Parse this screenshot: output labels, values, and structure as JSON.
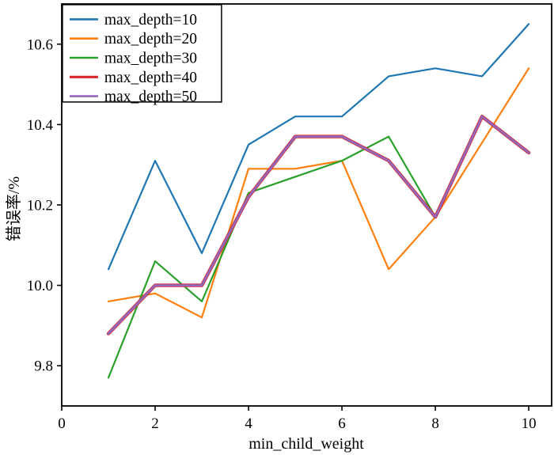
{
  "figure": {
    "background": "#ffffff",
    "frame_color": "#000000",
    "text_color": "#000000"
  },
  "chart_data": {
    "type": "line",
    "title": "",
    "xlabel": "min_child_weight",
    "ylabel": "错误率/%",
    "x": [
      1,
      2,
      3,
      4,
      5,
      6,
      7,
      8,
      9,
      10
    ],
    "series": [
      {
        "name": "max_depth=10",
        "color": "#1f77b4",
        "values": [
          10.04,
          10.31,
          10.08,
          10.35,
          10.42,
          10.42,
          10.52,
          10.54,
          10.52,
          10.65
        ]
      },
      {
        "name": "max_depth=20",
        "color": "#ff7f0e",
        "values": [
          9.96,
          9.98,
          9.92,
          10.29,
          10.29,
          10.31,
          10.04,
          10.17,
          10.355,
          10.54
        ]
      },
      {
        "name": "max_depth=30",
        "color": "#2ca02c",
        "values": [
          9.77,
          10.06,
          9.96,
          10.23,
          10.27,
          10.31,
          10.37,
          10.17,
          10.42,
          10.33
        ]
      },
      {
        "name": "max_depth=40",
        "color": "#d62728",
        "values": [
          9.88,
          10.0,
          10.0,
          10.22,
          10.37,
          10.37,
          10.31,
          10.17,
          10.42,
          10.33
        ]
      },
      {
        "name": "max_depth=50",
        "color": "#9467bd",
        "values": [
          9.88,
          10.0,
          10.0,
          10.22,
          10.37,
          10.37,
          10.31,
          10.17,
          10.42,
          10.33
        ]
      }
    ],
    "xticks": [
      0,
      2,
      4,
      6,
      8,
      10
    ],
    "yticks": [
      9.8,
      10.0,
      10.2,
      10.4,
      10.6
    ],
    "xlim": [
      0,
      10.49
    ],
    "ylim": [
      9.7,
      10.7
    ],
    "grid": false,
    "legend_position": "upper-left",
    "legend_entries": [
      "max_depth=10",
      "max_depth=20",
      "max_depth=30",
      "max_depth=40",
      "max_depth=50"
    ]
  }
}
